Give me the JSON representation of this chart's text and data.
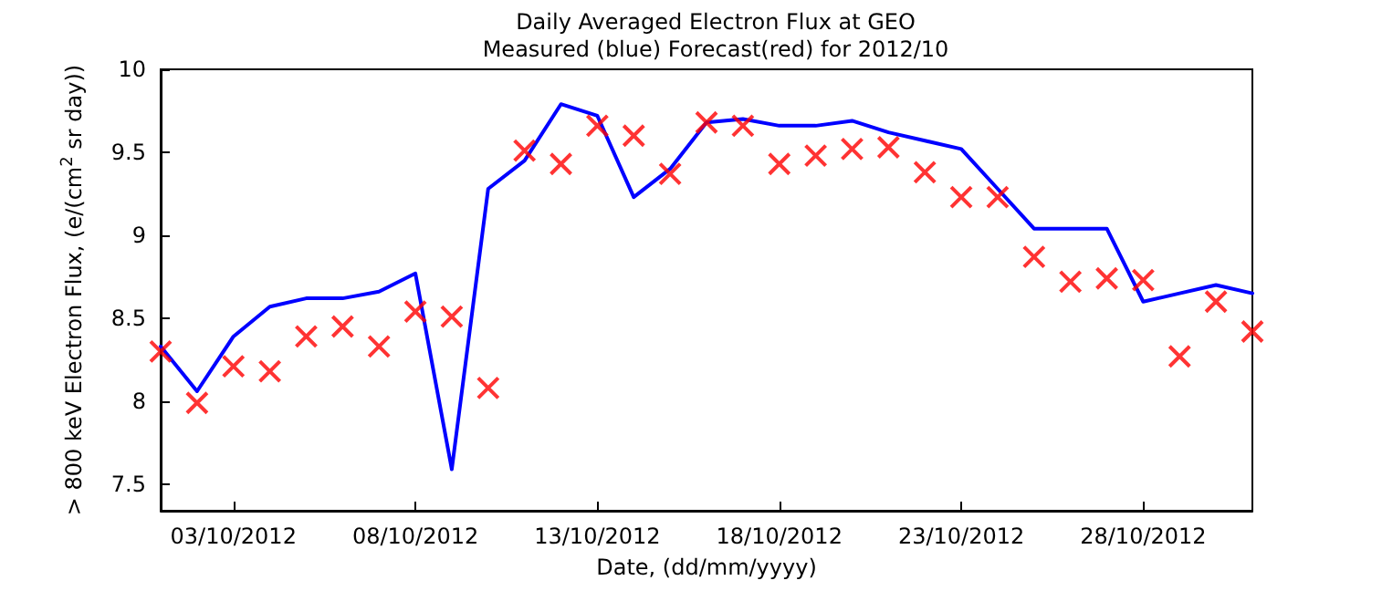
{
  "chart_data": {
    "type": "line",
    "title": "Daily Averaged Electron Flux at GEO",
    "subtitle": "Measured (blue) Forecast(red) for 2012/10",
    "xlabel": "Date, (dd/mm/yyyy)",
    "ylabel": "> 800 keV Electron Flux, (e/(cm$^{2}$ sr day))",
    "x": [
      "2012-10-01",
      "2012-10-02",
      "2012-10-03",
      "2012-10-04",
      "2012-10-05",
      "2012-10-06",
      "2012-10-07",
      "2012-10-08",
      "2012-10-09",
      "2012-10-10",
      "2012-10-11",
      "2012-10-12",
      "2012-10-13",
      "2012-10-14",
      "2012-10-15",
      "2012-10-16",
      "2012-10-17",
      "2012-10-18",
      "2012-10-19",
      "2012-10-20",
      "2012-10-21",
      "2012-10-22",
      "2012-10-23",
      "2012-10-24",
      "2012-10-25",
      "2012-10-26",
      "2012-10-27",
      "2012-10-28",
      "2012-10-29",
      "2012-10-30",
      "2012-10-31"
    ],
    "series": [
      {
        "color": "#0000ff",
        "marker": "none",
        "line_style": "solid",
        "values": [
          8.33,
          8.06,
          8.39,
          8.57,
          8.62,
          8.62,
          8.66,
          8.77,
          7.59,
          9.28,
          9.45,
          9.79,
          9.72,
          9.23,
          9.4,
          9.68,
          9.7,
          9.66,
          9.66,
          9.69,
          9.62,
          9.57,
          9.52,
          9.28,
          9.04,
          9.04,
          9.04,
          8.6,
          8.65,
          8.7,
          8.65
        ]
      },
      {
        "type": "scatter",
        "color": "#ff0000",
        "marker": "cross",
        "values": [
          8.3,
          7.99,
          8.21,
          8.18,
          8.39,
          8.45,
          8.33,
          8.54,
          8.51,
          8.08,
          9.51,
          9.43,
          9.66,
          9.6,
          9.37,
          9.68,
          9.66,
          9.43,
          9.48,
          9.52,
          9.53,
          9.38,
          9.23,
          9.23,
          8.87,
          8.72,
          8.74,
          8.73,
          8.27,
          8.6,
          8.42
        ]
      }
    ],
    "xlim": [
      "2012-10-01",
      "2012-10-31"
    ],
    "xticks": [
      {
        "value": "2012-10-03",
        "label": "03/10/2012"
      },
      {
        "value": "2012-10-08",
        "label": "08/10/2012"
      },
      {
        "value": "2012-10-13",
        "label": "13/10/2012"
      },
      {
        "value": "2012-10-18",
        "label": "18/10/2012"
      },
      {
        "value": "2012-10-23",
        "label": "23/10/2012"
      },
      {
        "value": "2012-10-28",
        "label": "28/10/2012"
      }
    ],
    "ylim": [
      7.34,
      10
    ],
    "yticks": [
      {
        "value": 7.5,
        "label": "7.5"
      },
      8,
      8.5,
      9,
      9.5,
      10
    ]
  }
}
